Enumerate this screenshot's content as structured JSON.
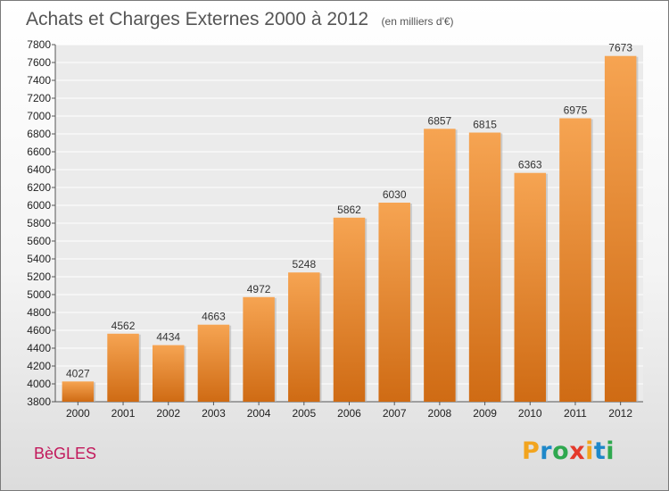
{
  "header": {
    "title": "Achats et Charges Externes 2000 à 2012",
    "subtitle": "(en milliers d'€)"
  },
  "footer": {
    "town": "BèGLES",
    "logo_letters": [
      {
        "char": "P",
        "color": "#f2a41e"
      },
      {
        "char": "r",
        "color": "#1e88c9"
      },
      {
        "char": "o",
        "color": "#2fa84f"
      },
      {
        "char": "x",
        "color": "#e43a2b"
      },
      {
        "char": "i",
        "color": "#f2a41e"
      },
      {
        "char": "t",
        "color": "#1e88c9"
      },
      {
        "char": "i",
        "color": "#2fa84f"
      }
    ]
  },
  "chart_data": {
    "type": "bar",
    "categories": [
      "2000",
      "2001",
      "2002",
      "2003",
      "2004",
      "2005",
      "2006",
      "2007",
      "2008",
      "2009",
      "2010",
      "2011",
      "2012"
    ],
    "values": [
      4027,
      4562,
      4434,
      4663,
      4972,
      5248,
      5862,
      6030,
      6857,
      6815,
      6363,
      6975,
      7673
    ],
    "ylim": [
      3800,
      7800
    ],
    "ytick_step": 200,
    "grid": true,
    "legend": "none",
    "bar_color_top": "#f6a452",
    "bar_color_bottom": "#cf6b14",
    "value_labels": true
  }
}
